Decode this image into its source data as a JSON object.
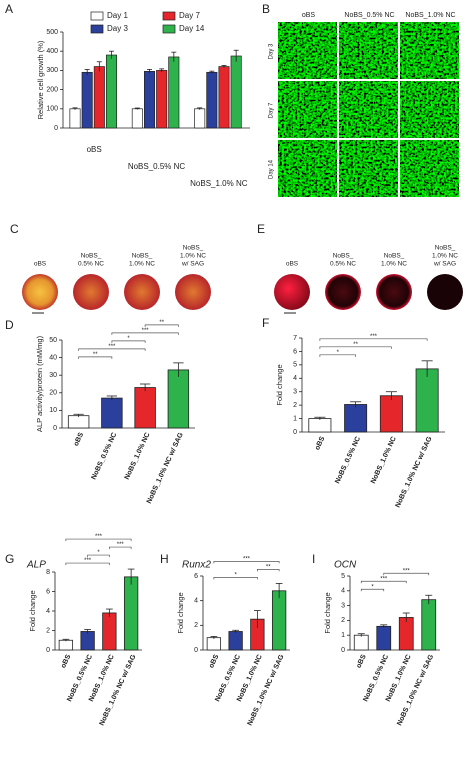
{
  "chart_data": [
    {
      "type": "bar",
      "panel": "A",
      "ylabel": "Relative cell growth (%)",
      "categories": [
        "oBS",
        "NoBS_0.5% NC",
        "NoBS_1.0% NC"
      ],
      "series": [
        {
          "name": "Day 1",
          "color": "#ffffff",
          "values": [
            100,
            100,
            100
          ],
          "errors": [
            5,
            4,
            5
          ]
        },
        {
          "name": "Day 3",
          "color": "#2b3f9c",
          "values": [
            290,
            295,
            290
          ],
          "errors": [
            15,
            10,
            6
          ]
        },
        {
          "name": "Day 7",
          "color": "#e5262b",
          "values": [
            320,
            300,
            320
          ],
          "errors": [
            25,
            8,
            6
          ]
        },
        {
          "name": "Day 14",
          "color": "#2eb24b",
          "values": [
            380,
            370,
            375
          ],
          "errors": [
            20,
            25,
            30
          ]
        }
      ],
      "ylim": [
        0,
        500
      ],
      "yticks": [
        0,
        100,
        200,
        300,
        400,
        500
      ]
    },
    {
      "type": "bar",
      "panel": "D",
      "ylabel": "ALP activity/protein (mM/mg)",
      "categories": [
        "oBS",
        "NoBS_0.5% NC",
        "NoBS_1.0% NC",
        "NoBS_1.0% NC w/ SAG"
      ],
      "values": [
        7,
        17,
        23,
        33
      ],
      "errors": [
        0.8,
        1.2,
        2,
        4
      ],
      "colors": [
        "#ffffff",
        "#2b3f9c",
        "#e5262b",
        "#2eb24b"
      ],
      "ylim": [
        0,
        50
      ],
      "yticks": [
        0,
        10,
        20,
        30,
        40,
        50
      ],
      "comparisons": [
        {
          "groups": [
            0,
            1
          ],
          "label": "**"
        },
        {
          "groups": [
            0,
            2
          ],
          "label": "***"
        },
        {
          "groups": [
            1,
            2
          ],
          "label": "*"
        },
        {
          "groups": [
            1,
            3
          ],
          "label": "***"
        },
        {
          "groups": [
            2,
            3
          ],
          "label": "**"
        }
      ]
    },
    {
      "type": "bar",
      "panel": "F",
      "ylabel": "Fold change",
      "categories": [
        "oBS",
        "NoBS_0.5% NC",
        "NoBS_1.0% NC",
        "NoBS_1.0% NC w/ SAG"
      ],
      "values": [
        1.0,
        2.05,
        2.7,
        4.7
      ],
      "errors": [
        0.1,
        0.2,
        0.3,
        0.6
      ],
      "colors": [
        "#ffffff",
        "#2b3f9c",
        "#e5262b",
        "#2eb24b"
      ],
      "ylim": [
        0,
        7
      ],
      "yticks": [
        0,
        1,
        2,
        3,
        4,
        5,
        6,
        7
      ],
      "comparisons": [
        {
          "groups": [
            0,
            1
          ],
          "label": "*"
        },
        {
          "groups": [
            0,
            2
          ],
          "label": "**"
        },
        {
          "groups": [
            0,
            3
          ],
          "label": "***"
        }
      ]
    },
    {
      "type": "bar",
      "panel": "G",
      "title": "ALP",
      "ylabel": "Fold change",
      "categories": [
        "oBS",
        "NoBS_0.5% NC",
        "NoBS_1.0% NC",
        "NoBS_1.0% NC w/ SAG"
      ],
      "values": [
        1.0,
        1.9,
        3.8,
        7.5
      ],
      "errors": [
        0.1,
        0.2,
        0.4,
        0.8
      ],
      "colors": [
        "#ffffff",
        "#2b3f9c",
        "#e5262b",
        "#2eb24b"
      ],
      "ylim": [
        0,
        8
      ],
      "yticks": [
        0,
        2,
        4,
        6,
        8
      ],
      "comparisons": [
        {
          "groups": [
            0,
            2
          ],
          "label": "***"
        },
        {
          "groups": [
            1,
            2
          ],
          "label": "*"
        },
        {
          "groups": [
            2,
            3
          ],
          "label": "***"
        },
        {
          "groups": [
            0,
            3
          ],
          "label": "***"
        }
      ]
    },
    {
      "type": "bar",
      "panel": "H",
      "title": "Runx2",
      "ylabel": "Fold change",
      "categories": [
        "oBS",
        "NoBS_0.5% NC",
        "NoBS_1.0% NC",
        "NoBS_1.0% NC w/ SAG"
      ],
      "values": [
        1.0,
        1.5,
        2.5,
        4.8
      ],
      "errors": [
        0.1,
        0.1,
        0.7,
        0.6
      ],
      "colors": [
        "#ffffff",
        "#2b3f9c",
        "#e5262b",
        "#2eb24b"
      ],
      "ylim": [
        0,
        6
      ],
      "yticks": [
        0,
        2,
        4,
        6
      ],
      "comparisons": [
        {
          "groups": [
            0,
            2
          ],
          "label": "*"
        },
        {
          "groups": [
            2,
            3
          ],
          "label": "**"
        },
        {
          "groups": [
            0,
            3
          ],
          "label": "***"
        }
      ]
    },
    {
      "type": "bar",
      "panel": "I",
      "title": "OCN",
      "ylabel": "Fold change",
      "categories": [
        "oBS",
        "NoBS_0.5% NC",
        "NoBS_1.0% NC",
        "NoBS_1.0% NC w/ SAG"
      ],
      "values": [
        1.0,
        1.6,
        2.2,
        3.4
      ],
      "errors": [
        0.1,
        0.1,
        0.3,
        0.3
      ],
      "colors": [
        "#ffffff",
        "#2b3f9c",
        "#e5262b",
        "#2eb24b"
      ],
      "ylim": [
        0,
        5
      ],
      "yticks": [
        0,
        1,
        2,
        3,
        4,
        5
      ],
      "comparisons": [
        {
          "groups": [
            0,
            1
          ],
          "label": "*"
        },
        {
          "groups": [
            0,
            2
          ],
          "label": "***"
        },
        {
          "groups": [
            1,
            3
          ],
          "label": "***"
        }
      ]
    }
  ],
  "images": {
    "B": {
      "panel": "B",
      "columns": [
        "oBS",
        "NoBS_0.5% NC",
        "NoBS_1.0% NC"
      ],
      "rows": [
        "Day 3",
        "Day 7",
        "Day 14"
      ]
    },
    "C": {
      "panel": "C",
      "labels": [
        [
          "oBS"
        ],
        [
          "NoBS_",
          "0.5% NC"
        ],
        [
          "NoBS_",
          "1.0% NC"
        ],
        [
          "NoBS_",
          "1.0% NC",
          "w/ SAG"
        ]
      ]
    },
    "E": {
      "panel": "E",
      "labels": [
        [
          "oBS"
        ],
        [
          "NoBS_",
          "0.5% NC"
        ],
        [
          "NoBS_",
          "1.0% NC"
        ],
        [
          "NoBS_",
          "1.0% NC",
          "w/ SAG"
        ]
      ]
    }
  }
}
